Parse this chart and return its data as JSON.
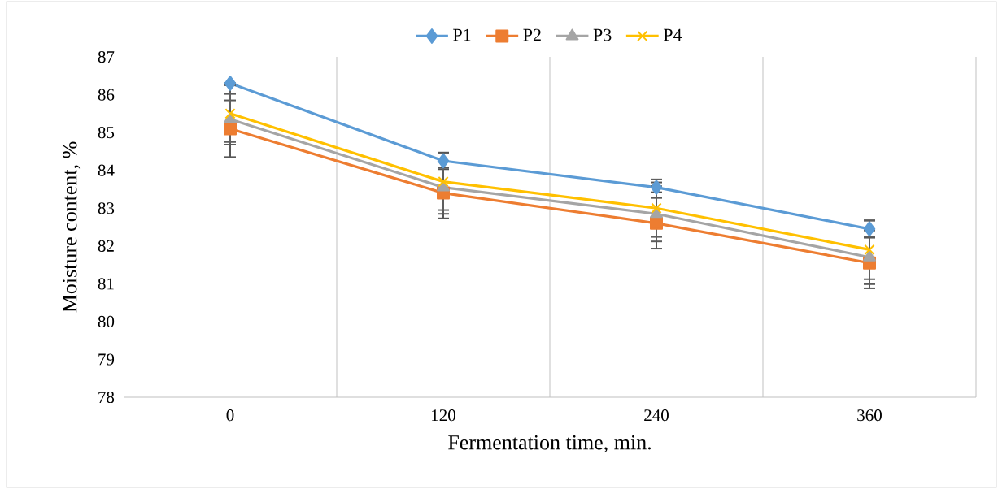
{
  "chart_data": {
    "type": "line",
    "xlabel": "Fermentation time, min.",
    "ylabel": "Moisture content, %",
    "categories": [
      "0",
      "120",
      "240",
      "360"
    ],
    "series": [
      {
        "name": "P1",
        "color": "#5b9bd5",
        "marker": "diamond",
        "values": [
          86.3,
          84.25,
          83.55,
          82.45
        ],
        "errors": [
          null,
          0.22,
          0.13,
          0.22
        ]
      },
      {
        "name": "P2",
        "color": "#ed7d31",
        "marker": "square",
        "values": [
          85.1,
          83.4,
          82.6,
          81.55
        ],
        "errors": [
          0.75,
          0.67,
          0.67,
          0.67
        ]
      },
      {
        "name": "P3",
        "color": "#a5a5a5",
        "marker": "triangle",
        "values": [
          85.35,
          83.55,
          82.85,
          81.7
        ],
        "errors": [
          0.67,
          0.7,
          0.73,
          0.71
        ]
      },
      {
        "name": "P4",
        "color": "#ffc000",
        "marker": "cross",
        "values": [
          85.5,
          83.7,
          83.0,
          81.9
        ],
        "errors": [
          0.75,
          0.75,
          0.76,
          0.78
        ]
      }
    ],
    "ylim": [
      78,
      87
    ],
    "yticks": [
      78,
      79,
      80,
      81,
      82,
      83,
      84,
      85,
      86,
      87
    ],
    "grid": "x",
    "legend": "top",
    "line_style": "solid"
  }
}
